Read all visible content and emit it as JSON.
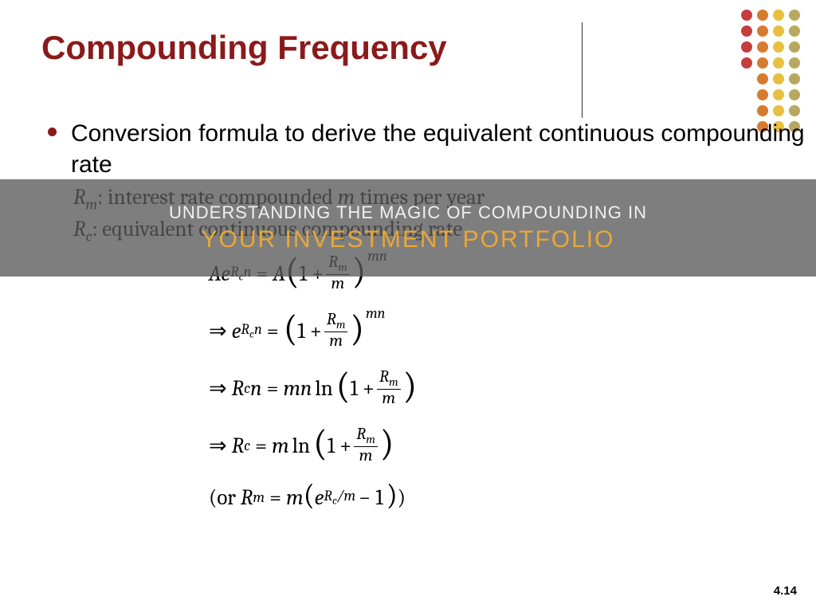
{
  "title": "Compounding Frequency",
  "bullet": "Conversion formula to derive the equivalent continuous compounding rate",
  "def1_pre": "R",
  "def1_sub": "m",
  "def1_text": ": interest rate compounded ",
  "def1_mid": "m",
  "def1_post": " times per year",
  "def2_pre": "R",
  "def2_sub": "c",
  "def2_text": ": equivalent continuous compounding rate",
  "banner_line1": "UNDERSTANDING THE MAGIC OF COMPOUNDING IN",
  "banner_line2": "YOUR INVESTMENT PORTFOLIO",
  "page_number": "4.14",
  "dots": {
    "colors": [
      "#C43E3E",
      "#D67B2E",
      "#E8BF3E",
      "#B8A85E"
    ]
  }
}
